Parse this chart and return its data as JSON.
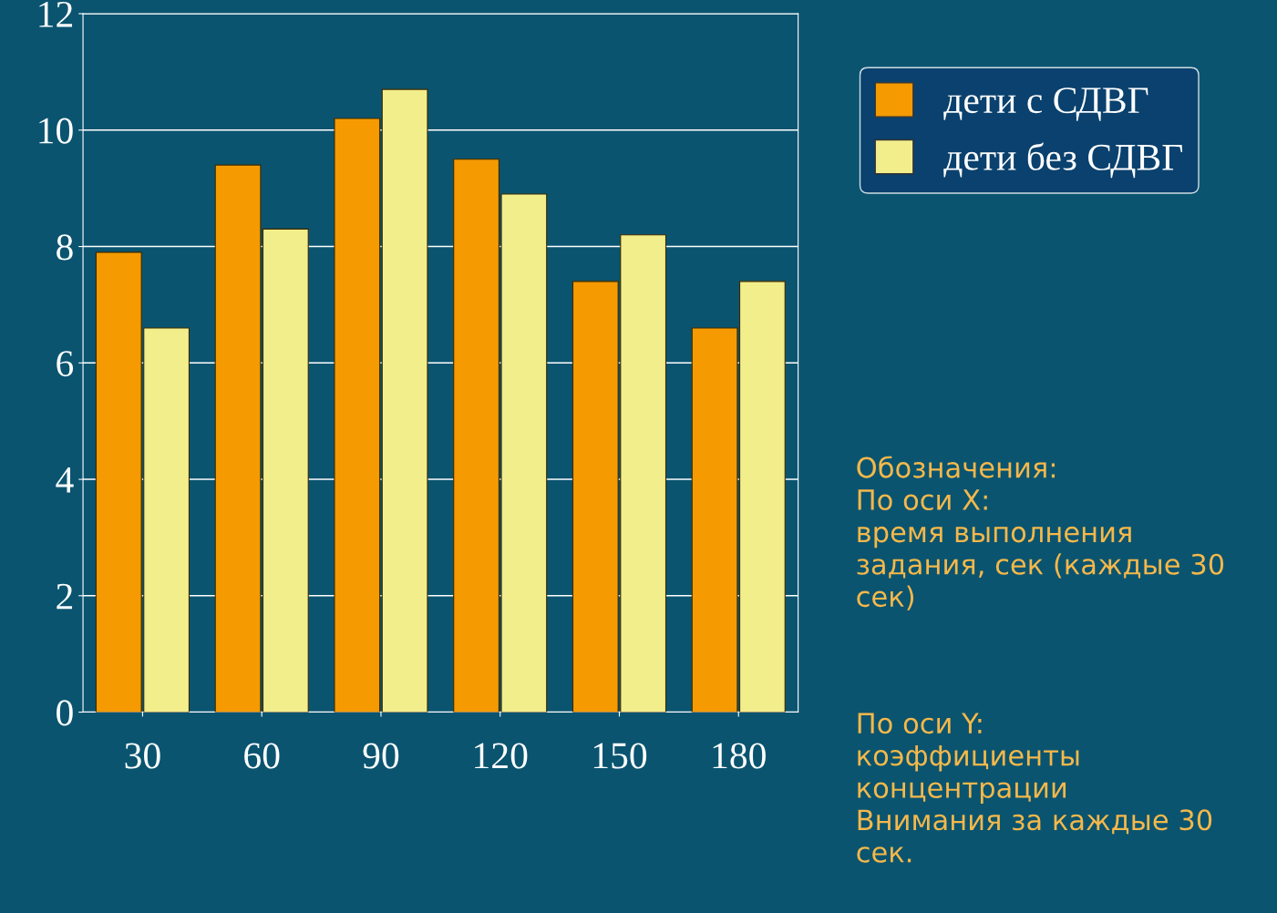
{
  "chart_data": {
    "type": "bar",
    "categories": [
      "30",
      "60",
      "90",
      "120",
      "150",
      "180"
    ],
    "series": [
      {
        "name": "дети с СДВГ",
        "color": "#f59a00",
        "values": [
          7.9,
          9.4,
          10.2,
          9.5,
          7.4,
          6.6
        ]
      },
      {
        "name": "дети без СДВГ",
        "color": "#f3ee8c",
        "values": [
          6.6,
          8.3,
          10.7,
          8.9,
          8.2,
          7.4
        ]
      }
    ],
    "ylim": [
      0,
      12
    ],
    "yticks": [
      0,
      2,
      4,
      6,
      8,
      10,
      12
    ],
    "grid": "y",
    "legend": "top right",
    "annotations": [
      "Обозначения:\nПо оси X:\nвремя выполнения\nзадания, сек (каждые 30\nсек)",
      "По оси Y:\nкоэффициенты\nконцентрации\nВнимания за каждые 30\nсек."
    ]
  }
}
